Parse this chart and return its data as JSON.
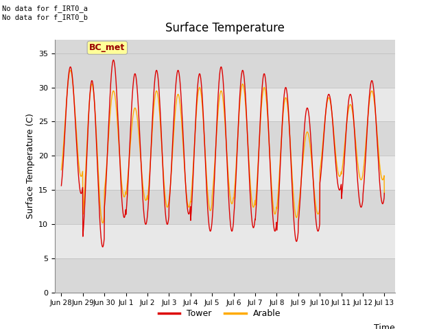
{
  "title": "Surface Temperature",
  "ylabel": "Surface Temperature (C)",
  "xlabel": "Time",
  "ylim": [
    0,
    37
  ],
  "yticks": [
    0,
    5,
    10,
    15,
    20,
    25,
    30,
    35
  ],
  "tower_color": "#dd0000",
  "arable_color": "#ffaa00",
  "legend_labels": [
    "Tower",
    "Arable"
  ],
  "annotation_text": "No data for f_IRT0_a\nNo data for f_IRT0_b",
  "bc_met_label": "BC_met",
  "bc_met_bg": "#ffff99",
  "bc_met_fg": "#990000",
  "plot_bg_color": "#d8d8d8",
  "band_color_light": "#e8e8e8",
  "x_tick_labels": [
    "Jun 28",
    "Jun 29",
    "Jun 30",
    "Jul 1",
    "Jul 2",
    "Jul 3",
    "Jul 4",
    "Jul 5",
    "Jul 6",
    "Jul 7",
    "Jul 8",
    "Jul 9",
    "Jul 10",
    "Jul 11",
    "Jul 12",
    "Jul 13"
  ],
  "x_tick_positions": [
    0,
    1,
    2,
    3,
    4,
    5,
    6,
    7,
    8,
    9,
    10,
    11,
    12,
    13,
    14,
    15
  ],
  "tower_peaks": [
    33.0,
    31.0,
    34.0,
    32.0,
    32.5,
    32.5,
    32.0,
    33.0,
    32.5,
    32.0,
    30.0,
    27.0,
    29.0,
    29.0,
    31.0,
    15.0
  ],
  "tower_troughs": [
    14.5,
    6.7,
    11.0,
    10.0,
    10.0,
    11.5,
    9.0,
    9.0,
    9.5,
    9.0,
    7.5,
    9.0,
    15.0,
    12.5,
    13.0,
    14.5
  ],
  "arable_peaks": [
    32.5,
    30.5,
    29.5,
    27.0,
    29.5,
    29.0,
    30.0,
    29.5,
    30.5,
    30.0,
    28.5,
    23.5,
    28.5,
    27.5,
    29.5,
    15.0
  ],
  "arable_troughs": [
    17.0,
    10.2,
    14.0,
    13.5,
    12.5,
    12.5,
    12.0,
    13.0,
    12.5,
    11.5,
    11.0,
    11.5,
    17.0,
    16.5,
    16.5,
    14.5
  ]
}
